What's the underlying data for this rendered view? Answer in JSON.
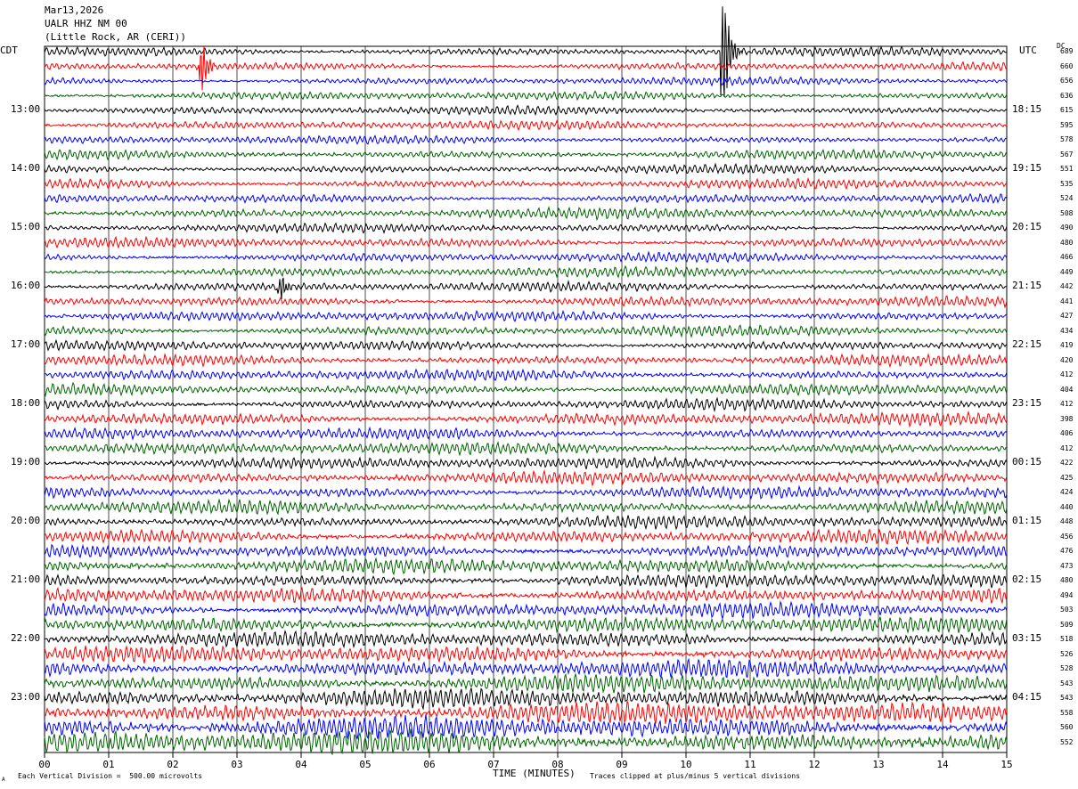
{
  "header": {
    "date": "Mar13,2026",
    "station": "UALR HHZ NM 00",
    "location": "(Little Rock, AR (CERI))"
  },
  "axis_labels": {
    "left_tz": "CDT",
    "right_tz": "UTC",
    "dc_label": "DC"
  },
  "footer": {
    "scale_note": "Each Vertical Division =  500.00 microvolts",
    "xlabel": "TIME (MINUTES)",
    "clip_note": "Traces clipped at plus/minus 5 vertical divisions",
    "corner_mark": "A"
  },
  "colors": [
    "#000000",
    "#ff0000",
    "#0000ff",
    "#006400"
  ],
  "chart_data": {
    "type": "line",
    "subtype": "helicorder",
    "x_ticks": [
      "00",
      "01",
      "02",
      "03",
      "04",
      "05",
      "06",
      "07",
      "08",
      "09",
      "10",
      "11",
      "12",
      "13",
      "14",
      "15"
    ],
    "xlim": [
      0,
      15
    ],
    "left_time_labels": [
      "13:00",
      "14:00",
      "15:00",
      "16:00",
      "17:00",
      "18:00",
      "19:00",
      "20:00",
      "21:00",
      "22:00",
      "23:00"
    ],
    "right_time_labels": [
      "18:15",
      "19:15",
      "20:15",
      "21:15",
      "22:15",
      "23:15",
      "00:15",
      "01:15",
      "02:15",
      "03:15",
      "04:15"
    ],
    "dc_offsets": [
      689,
      660,
      656,
      636,
      615,
      595,
      578,
      567,
      551,
      535,
      524,
      508,
      490,
      480,
      466,
      449,
      442,
      441,
      427,
      434,
      419,
      420,
      412,
      404,
      412,
      398,
      406,
      412,
      422,
      425,
      424,
      440,
      448,
      456,
      476,
      473,
      480,
      494,
      503,
      509,
      518,
      526,
      528,
      543,
      543,
      558,
      560,
      552
    ],
    "trace_color_cycle": [
      "black",
      "red",
      "blue",
      "green"
    ],
    "trace_amplitude_divisions": [
      0.32,
      0.3,
      0.28,
      0.3,
      0.3,
      0.32,
      0.3,
      0.34,
      0.32,
      0.34,
      0.34,
      0.38,
      0.32,
      0.36,
      0.34,
      0.36,
      0.34,
      0.38,
      0.36,
      0.38,
      0.36,
      0.4,
      0.38,
      0.42,
      0.4,
      0.46,
      0.42,
      0.44,
      0.42,
      0.46,
      0.44,
      0.48,
      0.46,
      0.5,
      0.48,
      0.54,
      0.5,
      0.56,
      0.54,
      0.58,
      0.56,
      0.62,
      0.64,
      0.68,
      0.7,
      0.8,
      0.82,
      0.88
    ],
    "events": [
      {
        "trace": 0,
        "minute": 10.58,
        "peak_divisions": 5.0
      },
      {
        "trace": 1,
        "minute": 2.45,
        "peak_divisions": 2.0
      },
      {
        "trace": 16,
        "minute": 3.68,
        "peak_divisions": 1.0
      }
    ],
    "grid": true
  }
}
